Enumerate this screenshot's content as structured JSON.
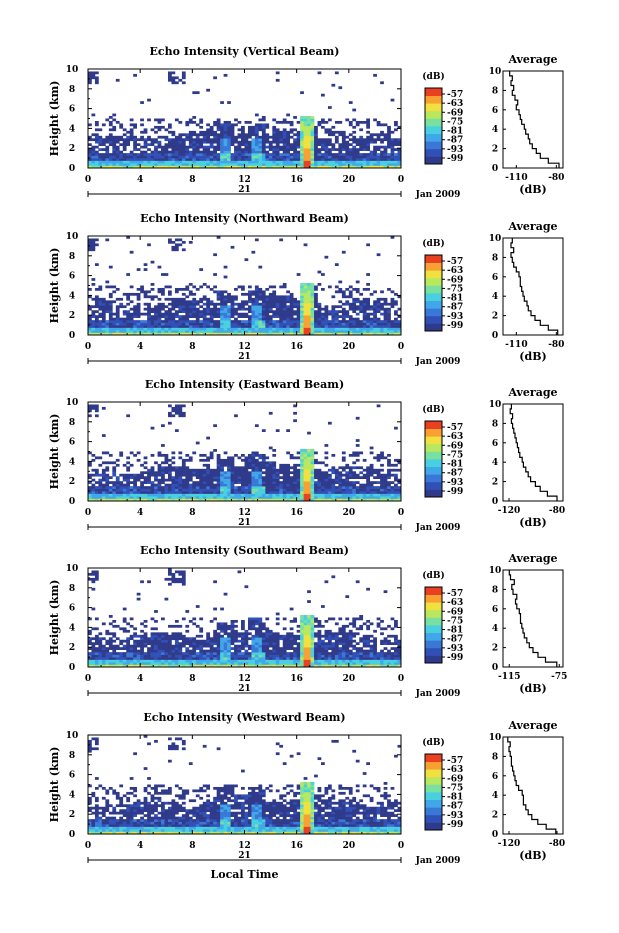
{
  "date_label": "Jan 2009",
  "day_label": "21",
  "xlabel": "Local Time",
  "ylabel": "Height (km)",
  "cbar_unit": "(dB)",
  "avg_title": "Average",
  "avg_xlabel": "(dB)",
  "x_ticks": [
    "0",
    "4",
    "8",
    "12",
    "16",
    "20",
    "0"
  ],
  "y_ticks": [
    "0",
    "2",
    "4",
    "6",
    "8",
    "10"
  ],
  "cbar_ticks": [
    "-57",
    "-63",
    "-69",
    "-75",
    "-81",
    "-87",
    "-93",
    "-99"
  ],
  "colorscale": [
    "#303a8a",
    "#3050b8",
    "#3a78d8",
    "#40a8e8",
    "#48d0e0",
    "#78e0a0",
    "#b8e860",
    "#f0e040",
    "#f8a030",
    "#e84020"
  ],
  "chart_data": [
    {
      "type": "heatmap",
      "title": "Echo Intensity (Vertical Beam)",
      "x_range_hours": [
        0,
        24
      ],
      "ylim_km": [
        0,
        10
      ],
      "color_range_db": [
        -99,
        -57
      ],
      "convective_cell_hours": [
        10.5,
        13,
        16.8
      ],
      "precip_column_hour": 16.8,
      "avg_profile": {
        "xlim": [
          -120,
          -75
        ],
        "xticks": [
          "-110",
          "-80"
        ],
        "height_km": [
          0,
          0.5,
          1,
          1.5,
          2,
          2.5,
          3,
          3.5,
          4,
          4.5,
          5,
          5.5,
          6,
          6.5,
          7,
          7.5,
          8,
          8.5,
          9,
          9.5
        ],
        "db": [
          -78,
          -86,
          -92,
          -95,
          -98,
          -100,
          -101,
          -103,
          -104,
          -106,
          -107,
          -108,
          -110,
          -109,
          -111,
          -113,
          -112,
          -114,
          -113,
          -115
        ]
      }
    },
    {
      "type": "heatmap",
      "title": "Echo Intensity (Northward Beam)",
      "x_range_hours": [
        0,
        24
      ],
      "ylim_km": [
        0,
        10
      ],
      "color_range_db": [
        -99,
        -57
      ],
      "convective_cell_hours": [
        10.5,
        13,
        16.8
      ],
      "precip_column_hour": 16.8,
      "avg_profile": {
        "xlim": [
          -120,
          -75
        ],
        "xticks": [
          "-110",
          "-80"
        ],
        "height_km": [
          0,
          0.5,
          1,
          1.5,
          2,
          2.5,
          3,
          3.5,
          4,
          4.5,
          5,
          5.5,
          6,
          6.5,
          7,
          7.5,
          8,
          8.5,
          9,
          9.5
        ],
        "db": [
          -79,
          -86,
          -92,
          -96,
          -99,
          -101,
          -102,
          -104,
          -105,
          -106,
          -107,
          -107,
          -108,
          -110,
          -112,
          -113,
          -114,
          -112,
          -114,
          -113
        ]
      }
    },
    {
      "type": "heatmap",
      "title": "Echo Intensity (Eastward Beam)",
      "x_range_hours": [
        0,
        24
      ],
      "ylim_km": [
        0,
        10
      ],
      "color_range_db": [
        -99,
        -57
      ],
      "convective_cell_hours": [
        10.5,
        13,
        16.8
      ],
      "precip_column_hour": 16.8,
      "avg_profile": {
        "xlim": [
          -125,
          -75
        ],
        "xticks": [
          "-120",
          "-80"
        ],
        "height_km": [
          0,
          0.5,
          1,
          1.5,
          2,
          2.5,
          3,
          3.5,
          4,
          4.5,
          5,
          5.5,
          6,
          6.5,
          7,
          7.5,
          8,
          8.5,
          9,
          9.5
        ],
        "db": [
          -80,
          -88,
          -94,
          -98,
          -102,
          -104,
          -106,
          -108,
          -109,
          -111,
          -112,
          -113,
          -114,
          -115,
          -116,
          -117,
          -118,
          -117,
          -119,
          -118
        ]
      }
    },
    {
      "type": "heatmap",
      "title": "Echo Intensity (Southward Beam)",
      "x_range_hours": [
        0,
        24
      ],
      "ylim_km": [
        0,
        10
      ],
      "color_range_db": [
        -99,
        -57
      ],
      "convective_cell_hours": [
        10.5,
        13,
        16.8
      ],
      "precip_column_hour": 16.8,
      "avg_profile": {
        "xlim": [
          -120,
          -72
        ],
        "xticks": [
          "-115",
          "-75"
        ],
        "height_km": [
          0,
          0.5,
          1,
          1.5,
          2,
          2.5,
          3,
          3.5,
          4,
          4.5,
          5,
          5.5,
          6,
          6.5,
          7,
          7.5,
          8,
          8.5,
          9,
          9.5
        ],
        "db": [
          -77,
          -86,
          -92,
          -96,
          -99,
          -101,
          -103,
          -104,
          -105,
          -106,
          -106,
          -107,
          -109,
          -110,
          -109,
          -112,
          -113,
          -111,
          -114,
          -115
        ]
      }
    },
    {
      "type": "heatmap",
      "title": "Echo Intensity (Westward Beam)",
      "x_range_hours": [
        0,
        24
      ],
      "ylim_km": [
        0,
        10
      ],
      "color_range_db": [
        -99,
        -57
      ],
      "convective_cell_hours": [
        10.5,
        13,
        16.8
      ],
      "precip_column_hour": 16.8,
      "avg_profile": {
        "xlim": [
          -125,
          -75
        ],
        "xticks": [
          "-120",
          "-80"
        ],
        "height_km": [
          0,
          0.5,
          1,
          1.5,
          2,
          2.5,
          3,
          3.5,
          4,
          4.5,
          5,
          5.5,
          6,
          6.5,
          7,
          7.5,
          8,
          8.5,
          9,
          9.5
        ],
        "db": [
          -81,
          -89,
          -96,
          -101,
          -104,
          -106,
          -108,
          -108,
          -109,
          -112,
          -114,
          -115,
          -116,
          -117,
          -118,
          -118,
          -119,
          -120,
          -119,
          -121
        ]
      }
    }
  ]
}
